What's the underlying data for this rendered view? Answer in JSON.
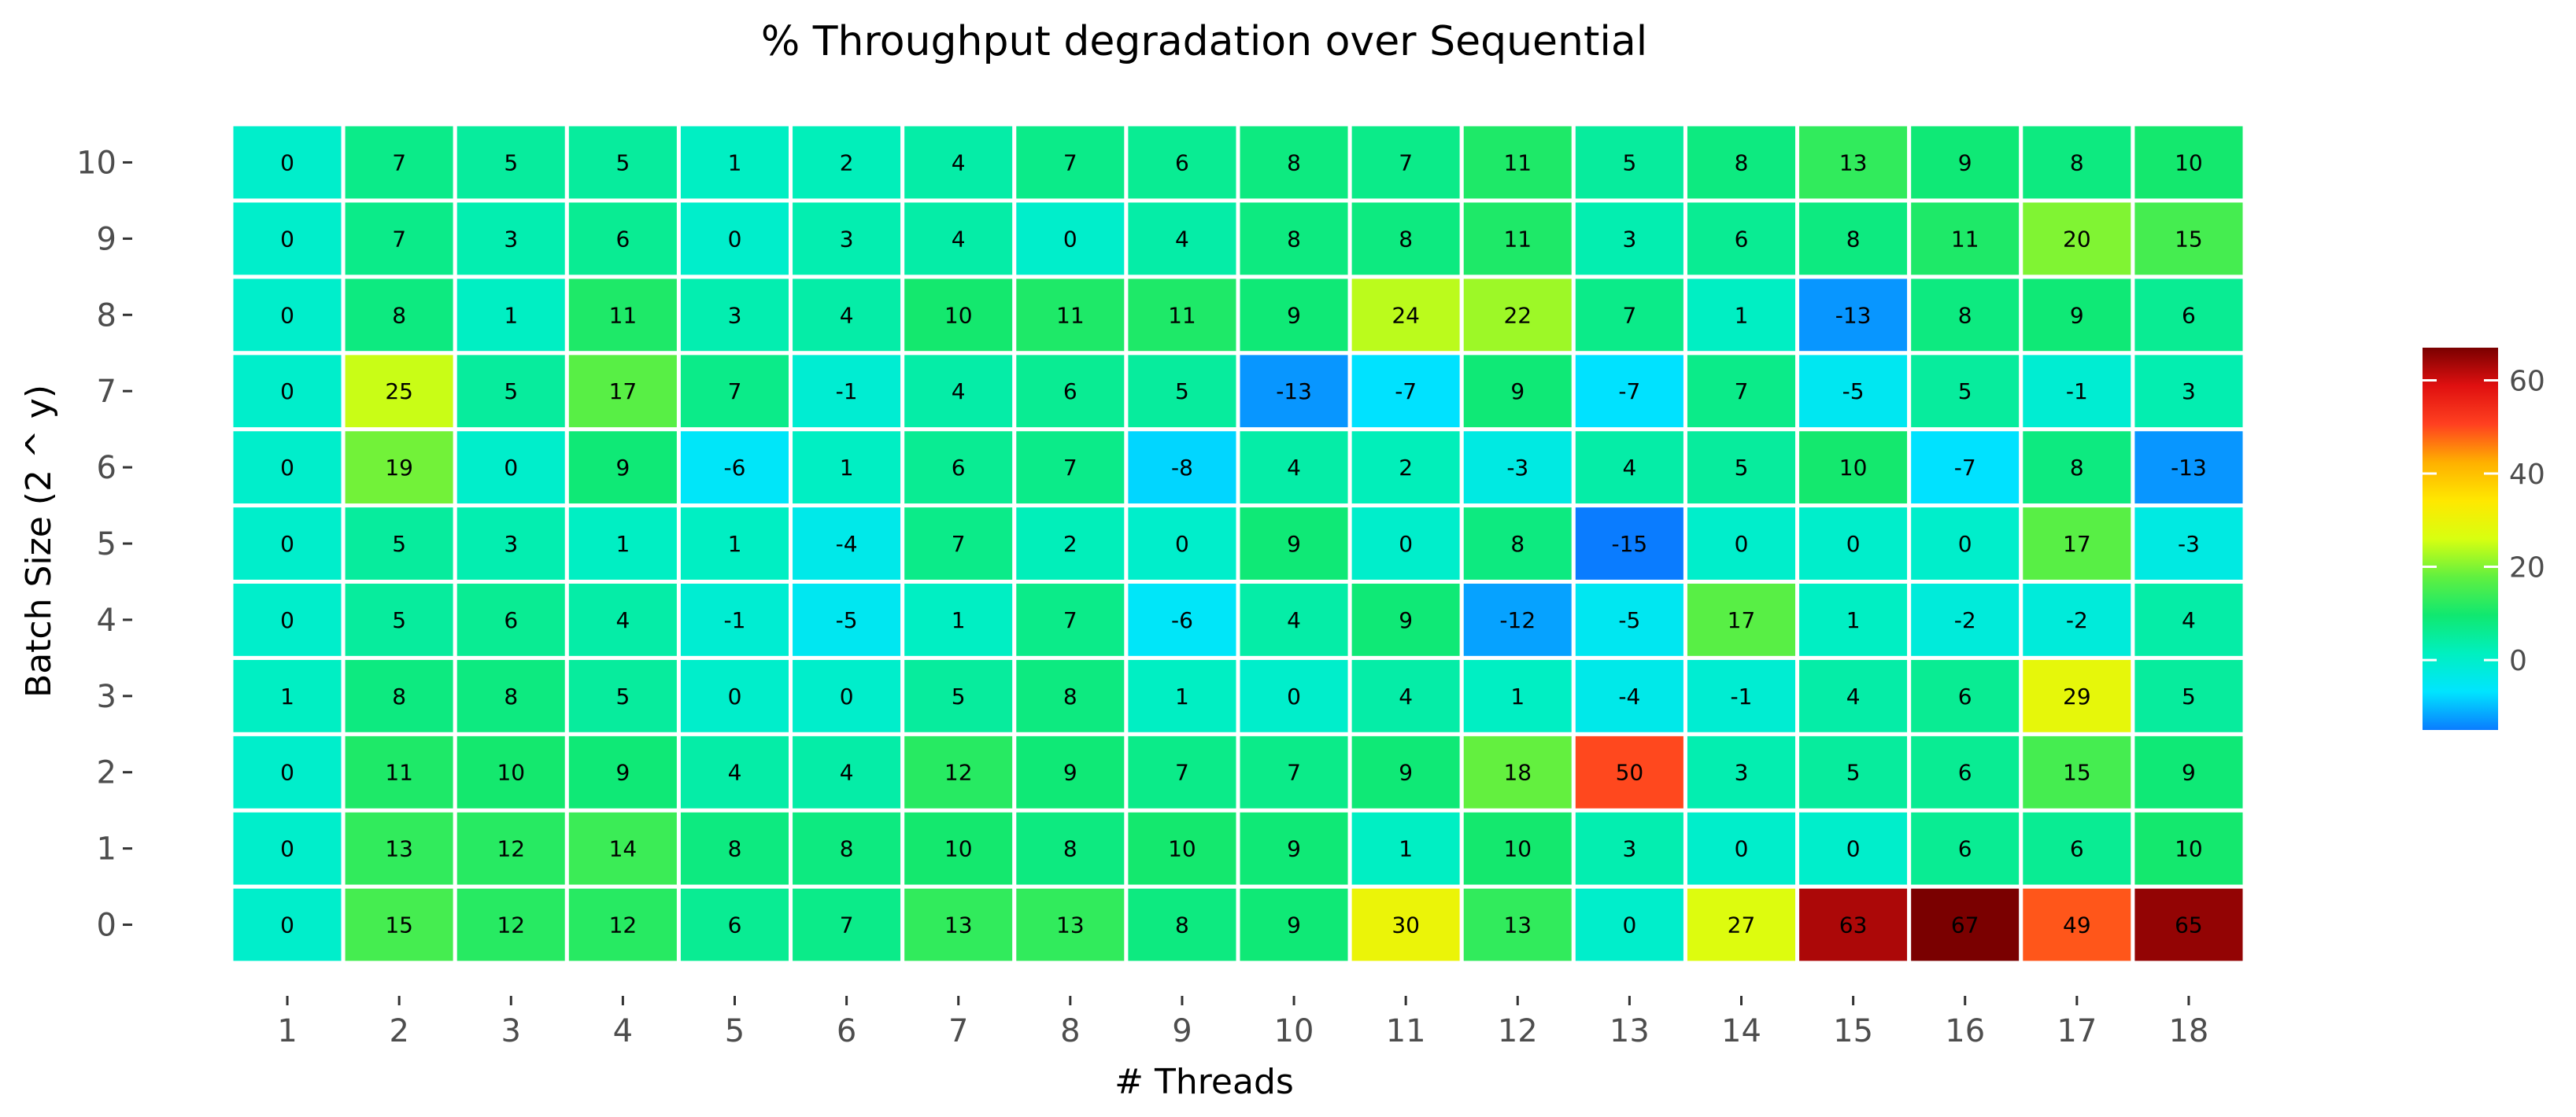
{
  "chart_data": {
    "type": "heatmap",
    "title": "% Throughput degradation over Sequential",
    "xlabel": "# Threads",
    "ylabel": "Batch Size (2 ^ y)",
    "x": [
      1,
      2,
      3,
      4,
      5,
      6,
      7,
      8,
      9,
      10,
      11,
      12,
      13,
      14,
      15,
      16,
      17,
      18
    ],
    "y": [
      0,
      1,
      2,
      3,
      4,
      5,
      6,
      7,
      8,
      9,
      10
    ],
    "values": [
      [
        0,
        15,
        12,
        12,
        6,
        7,
        13,
        13,
        8,
        9,
        30,
        13,
        0,
        27,
        63,
        67,
        49,
        65
      ],
      [
        0,
        13,
        12,
        14,
        8,
        8,
        10,
        8,
        10,
        9,
        1,
        10,
        3,
        0,
        0,
        6,
        6,
        10
      ],
      [
        0,
        11,
        10,
        9,
        4,
        4,
        12,
        9,
        7,
        7,
        9,
        18,
        50,
        3,
        5,
        6,
        15,
        9
      ],
      [
        1,
        8,
        8,
        5,
        0,
        0,
        5,
        8,
        1,
        0,
        4,
        1,
        -4,
        -1,
        4,
        6,
        29,
        5
      ],
      [
        0,
        5,
        6,
        4,
        -1,
        -5,
        1,
        7,
        -6,
        4,
        9,
        -12,
        -5,
        17,
        1,
        -2,
        -2,
        4
      ],
      [
        0,
        5,
        3,
        1,
        1,
        -4,
        7,
        2,
        0,
        9,
        0,
        8,
        -15,
        0,
        0,
        0,
        17,
        -3
      ],
      [
        0,
        19,
        0,
        9,
        -6,
        1,
        6,
        7,
        -8,
        4,
        2,
        -3,
        4,
        5,
        10,
        -7,
        8,
        -13
      ],
      [
        0,
        25,
        5,
        17,
        7,
        -1,
        4,
        6,
        5,
        -13,
        -7,
        9,
        -7,
        7,
        -5,
        5,
        -1,
        3
      ],
      [
        0,
        8,
        1,
        11,
        3,
        4,
        10,
        11,
        11,
        9,
        24,
        22,
        7,
        1,
        -13,
        8,
        9,
        6
      ],
      [
        0,
        7,
        3,
        6,
        0,
        3,
        4,
        0,
        4,
        8,
        8,
        11,
        3,
        6,
        8,
        11,
        20,
        15
      ],
      [
        0,
        7,
        5,
        5,
        1,
        2,
        4,
        7,
        6,
        8,
        7,
        11,
        5,
        8,
        13,
        9,
        8,
        10
      ]
    ],
    "colorbar": {
      "ticks": [
        0,
        20,
        40,
        60
      ],
      "range": [
        -15,
        67
      ],
      "colormap": [
        "#0a7cff",
        "#00e5ff",
        "#00f0c0",
        "#10e870",
        "#60f040",
        "#d8ff10",
        "#ffe800",
        "#ffb000",
        "#ff4020",
        "#e01010",
        "#7a0000"
      ]
    },
    "grid": false,
    "legend": "right",
    "colors": {
      "cell_border": "#ffffff",
      "background": "#ffffff"
    }
  }
}
